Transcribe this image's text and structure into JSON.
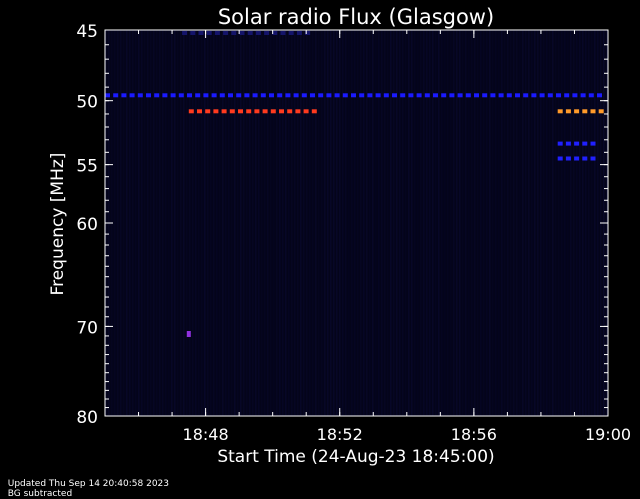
{
  "chart_data": {
    "type": "heatmap",
    "title": "Solar radio Flux (Glasgow)",
    "xlabel": "Start Time (24-Aug-23 18:45:00)",
    "ylabel": "Frequency [MHz]",
    "x_range_minutes": [
      0,
      15
    ],
    "x_ticks": [
      {
        "label": "18:48",
        "minutes": 3
      },
      {
        "label": "18:52",
        "minutes": 7
      },
      {
        "label": "18:56",
        "minutes": 11
      },
      {
        "label": "19:00",
        "minutes": 15
      }
    ],
    "y_axis_scale": "log",
    "y_range_mhz": [
      45,
      80
    ],
    "y_ticks": [
      45,
      50,
      55,
      60,
      70,
      80
    ],
    "background_color": "#04041a",
    "features": [
      {
        "kind": "dashed-band",
        "freq_mhz": 49.6,
        "start_min": 0.0,
        "end_min": 15.0,
        "color": "#1a1aff"
      },
      {
        "kind": "dashed-band",
        "freq_mhz": 50.8,
        "start_min": 2.5,
        "end_min": 6.3,
        "color": "#ff3a1e"
      },
      {
        "kind": "dashed-band",
        "freq_mhz": 50.8,
        "start_min": 13.5,
        "end_min": 15.0,
        "color": "#ff9a2a"
      },
      {
        "kind": "dashed-band",
        "freq_mhz": 53.3,
        "start_min": 13.5,
        "end_min": 14.8,
        "color": "#2020ff"
      },
      {
        "kind": "dashed-band",
        "freq_mhz": 54.5,
        "start_min": 13.5,
        "end_min": 14.8,
        "color": "#2020ff"
      },
      {
        "kind": "dashed-band",
        "freq_mhz": 45.2,
        "start_min": 2.3,
        "end_min": 6.1,
        "color": "#14146a"
      },
      {
        "kind": "spot",
        "freq_mhz": 70.8,
        "minute": 2.5,
        "color": "#9030e0"
      }
    ]
  },
  "footer": {
    "updated": "Updated Thu Sep 14 20:40:58 2023",
    "note": "BG subtracted"
  },
  "colors": {
    "axis": "#ffffff",
    "text": "#ffffff"
  }
}
